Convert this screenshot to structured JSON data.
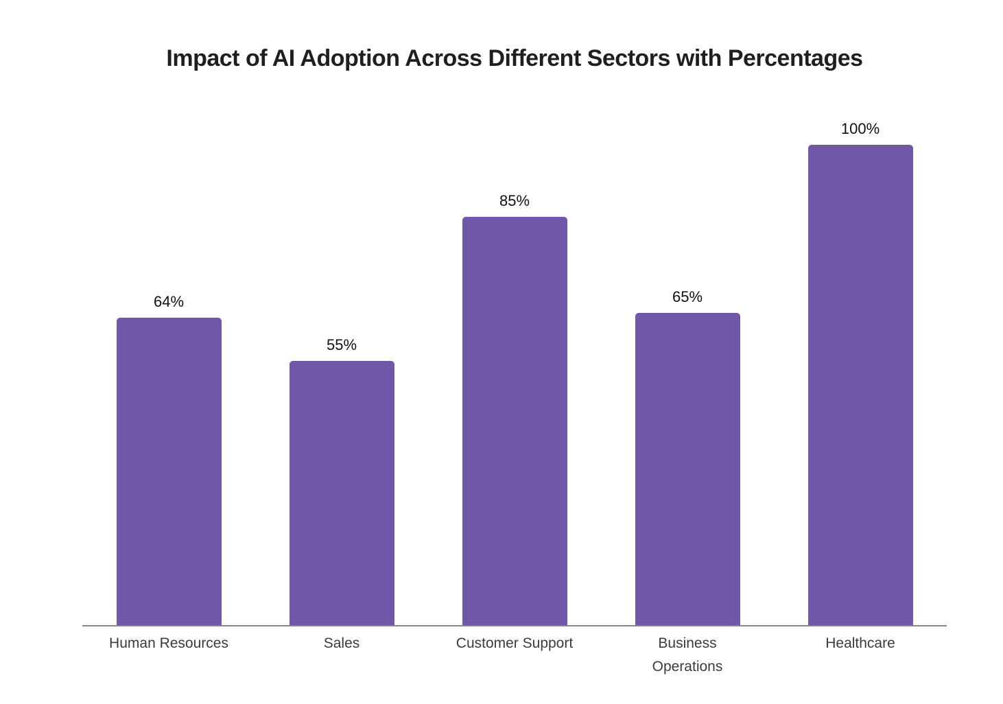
{
  "chart_data": {
    "type": "bar",
    "title": "Impact of AI Adoption Across Different Sectors with Percentages",
    "categories": [
      "Human Resources",
      "Sales",
      "Customer Support",
      "Business Operations",
      "Healthcare"
    ],
    "values": [
      64,
      55,
      85,
      65,
      100
    ],
    "value_labels": [
      "64%",
      "55%",
      "85%",
      "65%",
      "100%"
    ],
    "xlabel": "",
    "ylabel": "",
    "ylim": [
      0,
      100
    ],
    "grid": false,
    "legend": "none",
    "y_axis_ticks_visible": false,
    "colors": {
      "bar": "#7157A9",
      "axis_line": "#848484",
      "title": "#1F1F1F",
      "category_label": "#3B3B3B",
      "value_label": "#111111",
      "background": "#FFFFFF"
    }
  }
}
